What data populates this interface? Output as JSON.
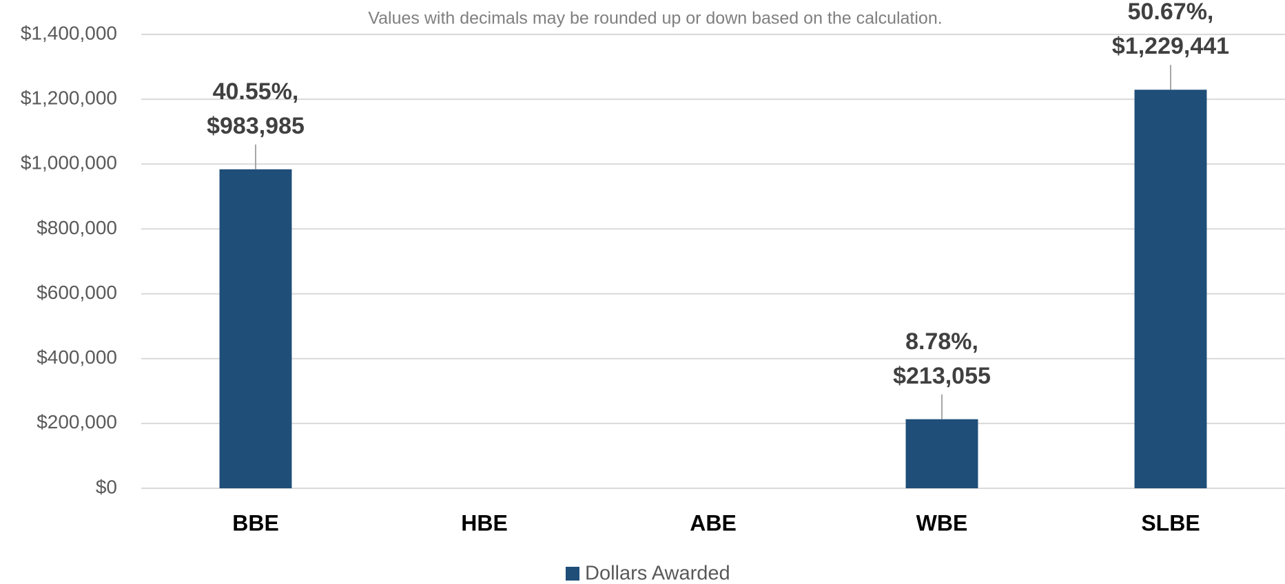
{
  "chart_data": {
    "type": "bar",
    "note": "Values with decimals may be rounded up or down based on the calculation.",
    "categories": [
      "BBE",
      "HBE",
      "ABE",
      "WBE",
      "SLBE"
    ],
    "series": [
      {
        "name": "Dollars Awarded",
        "color": "#1f4e79",
        "values": [
          983985,
          null,
          null,
          213055,
          1229441
        ],
        "value_labels": [
          "40.55%, $983,985",
          null,
          null,
          "8.78%, $213,055",
          "50.67%, $1,229,441"
        ]
      }
    ],
    "ylim": [
      0,
      1400000
    ],
    "yticks": [
      {
        "value": 0,
        "label": "$0"
      },
      {
        "value": 200000,
        "label": "$200,000"
      },
      {
        "value": 400000,
        "label": "$400,000"
      },
      {
        "value": 600000,
        "label": "$600,000"
      },
      {
        "value": 800000,
        "label": "$800,000"
      },
      {
        "value": 1000000,
        "label": "$1,000,000"
      },
      {
        "value": 1200000,
        "label": "$1,200,000"
      },
      {
        "value": 1400000,
        "label": "$1,400,000"
      }
    ],
    "grid": true,
    "legend": "bottom"
  }
}
